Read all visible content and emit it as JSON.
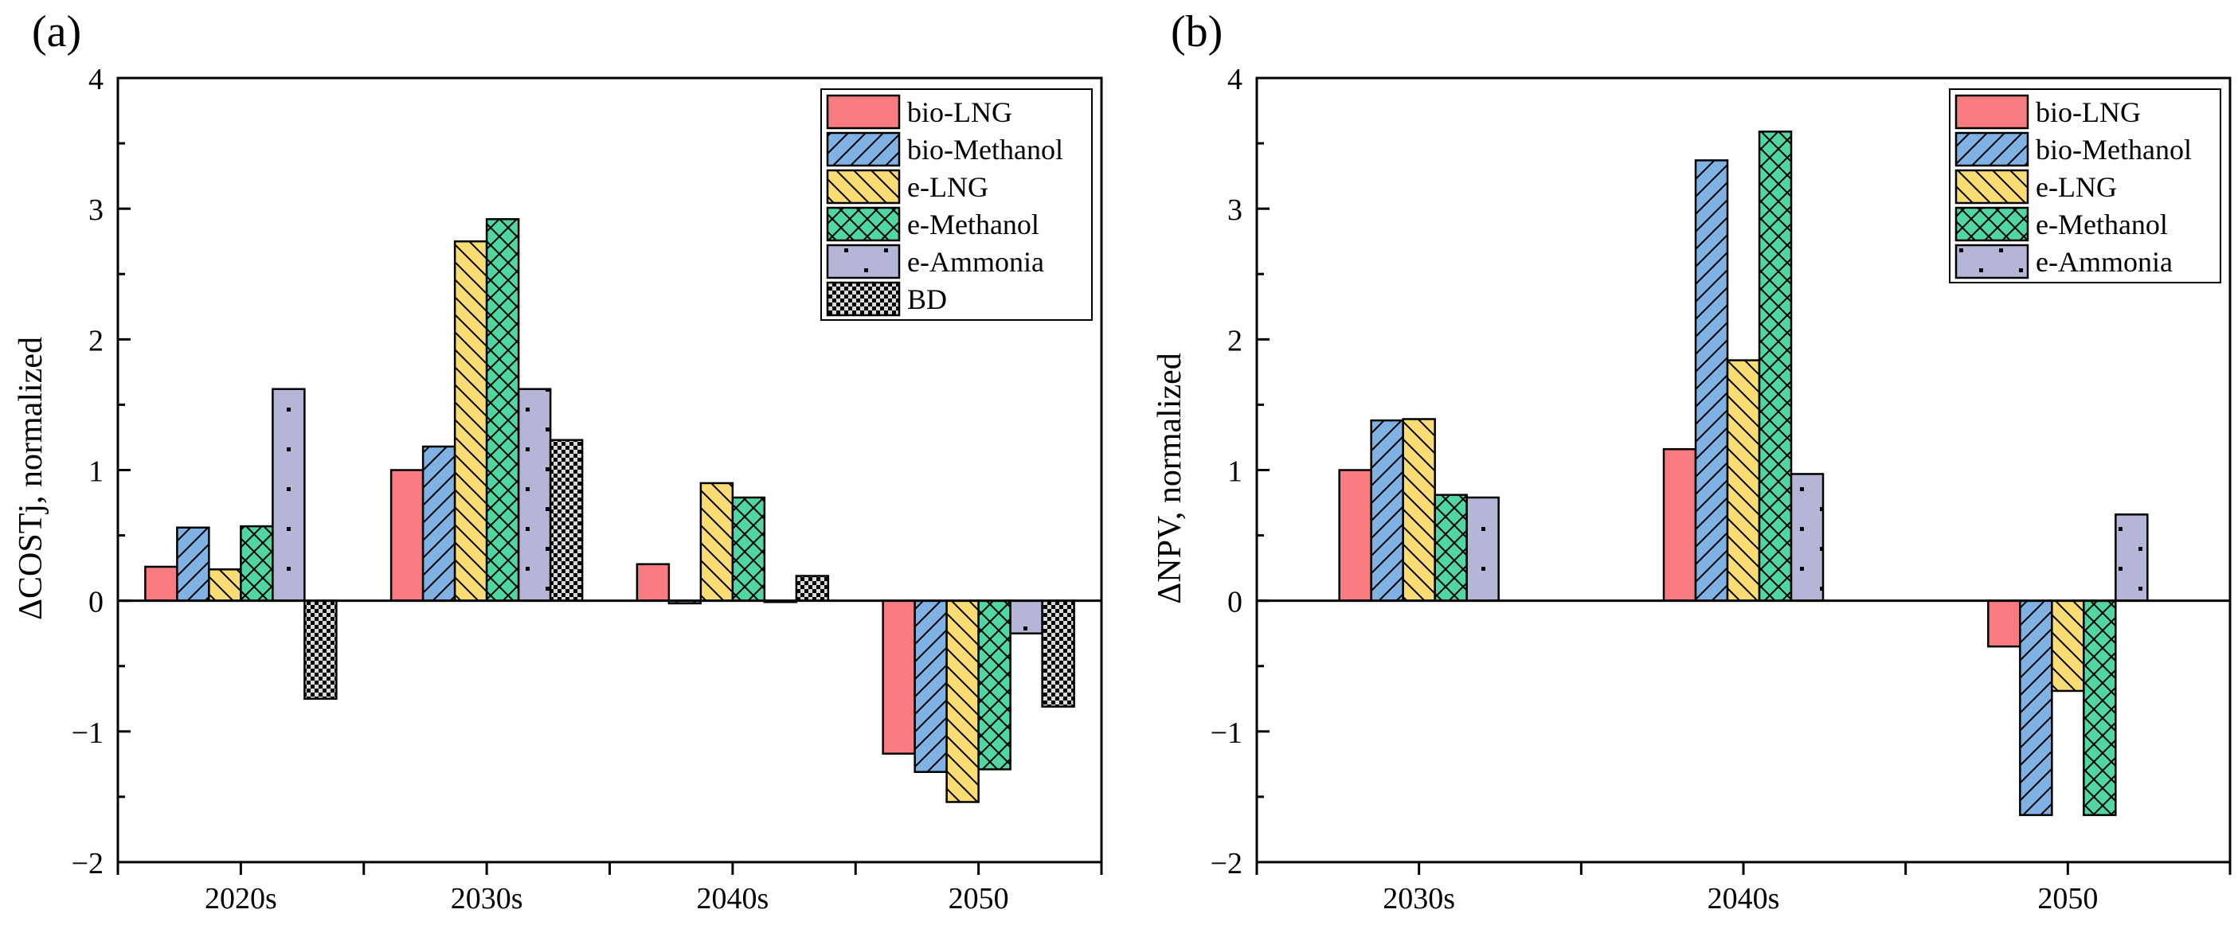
{
  "chart_data": [
    {
      "type": "bar",
      "panel_label": "(a)",
      "ylabel": "ΔCOSTj, normalized",
      "xlabel": "",
      "ylim": [
        -2,
        4
      ],
      "yticks": [
        -2,
        -1,
        0,
        1,
        2,
        3,
        4
      ],
      "ytick_labels": [
        "−2",
        "−1",
        "0",
        "1",
        "2",
        "3",
        "4"
      ],
      "categories": [
        "2020s",
        "2030s",
        "2040s",
        "2050"
      ],
      "legend_position": "top-right",
      "series": [
        {
          "name": "bio-LNG",
          "color": "#f87c7f",
          "pattern": "none",
          "values": [
            0.26,
            1.0,
            0.28,
            -1.17
          ]
        },
        {
          "name": "bio-Methanol",
          "color": "#7fb1e2",
          "pattern": "diagonal-up",
          "values": [
            0.56,
            1.18,
            -0.02,
            -1.31
          ]
        },
        {
          "name": "e-LNG",
          "color": "#fadc75",
          "pattern": "diagonal-down",
          "values": [
            0.24,
            2.75,
            0.9,
            -1.54
          ]
        },
        {
          "name": "e-Methanol",
          "color": "#4fd6a2",
          "pattern": "crosshatch",
          "values": [
            0.57,
            2.92,
            0.79,
            -1.29
          ]
        },
        {
          "name": "e-Ammonia",
          "color": "#b5b5d8",
          "pattern": "dots",
          "values": [
            1.62,
            1.62,
            -0.01,
            -0.25
          ]
        },
        {
          "name": "BD",
          "color": "#d9d9d9",
          "pattern": "checker",
          "values": [
            -0.75,
            1.23,
            0.19,
            -0.81
          ]
        }
      ]
    },
    {
      "type": "bar",
      "panel_label": "(b)",
      "ylabel": "ΔNPV, normalized",
      "xlabel": "",
      "ylim": [
        -2,
        4
      ],
      "yticks": [
        -2,
        -1,
        0,
        1,
        2,
        3,
        4
      ],
      "ytick_labels": [
        "−2",
        "−1",
        "0",
        "1",
        "2",
        "3",
        "4"
      ],
      "categories": [
        "2030s",
        "2040s",
        "2050"
      ],
      "legend_position": "top-right",
      "series": [
        {
          "name": "bio-LNG",
          "color": "#f87c7f",
          "pattern": "none",
          "values": [
            1.0,
            1.16,
            -0.35
          ]
        },
        {
          "name": "bio-Methanol",
          "color": "#7fb1e2",
          "pattern": "diagonal-up",
          "values": [
            1.38,
            3.37,
            -1.64
          ]
        },
        {
          "name": "e-LNG",
          "color": "#fadc75",
          "pattern": "diagonal-down",
          "values": [
            1.39,
            1.84,
            -0.69
          ]
        },
        {
          "name": "e-Methanol",
          "color": "#4fd6a2",
          "pattern": "crosshatch",
          "values": [
            0.81,
            3.59,
            -1.64
          ]
        },
        {
          "name": "e-Ammonia",
          "color": "#b5b5d8",
          "pattern": "dots",
          "values": [
            0.79,
            0.97,
            0.66
          ]
        }
      ]
    }
  ]
}
